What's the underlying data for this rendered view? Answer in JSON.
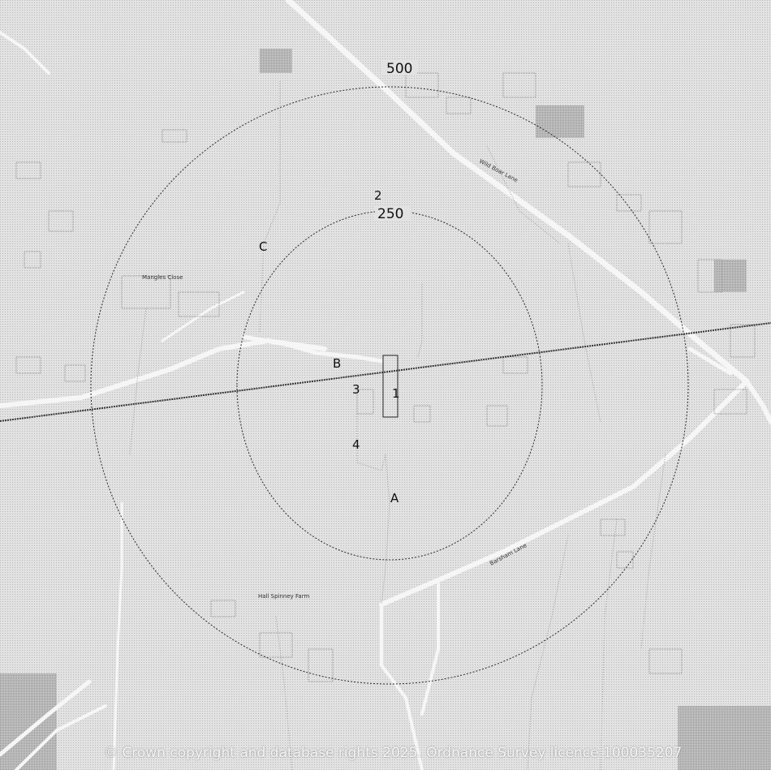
{
  "map": {
    "ring_labels": {
      "outer": "500",
      "inner": "250"
    },
    "point_labels": {
      "a": "A",
      "b": "B",
      "c": "C",
      "n1": "1",
      "n2": "2",
      "n3": "3",
      "n4": "4"
    },
    "road_labels": {
      "road_ne": "Wild Boar Lane",
      "road_se": "Barsham Lane",
      "place_w": "Mangles Close",
      "place_s": "Hall Spinney Farm"
    },
    "copyright": "© Crown copyright and database rights 2025. Ordnance Survey licence 100035207"
  }
}
